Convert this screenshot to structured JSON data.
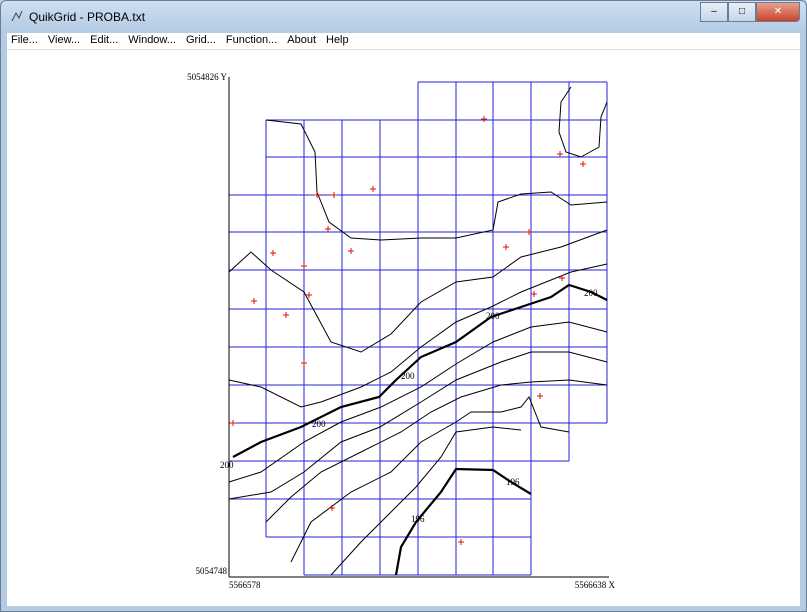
{
  "window": {
    "title": "QuikGrid - PROBA.txt"
  },
  "menu": [
    "File...",
    "View...",
    "Edit...",
    "Window...",
    "Grid...",
    "Function...",
    "About",
    "Help"
  ],
  "axes": {
    "y_top": "5054826 Y",
    "y_bottom": "5054748",
    "x_left": "5566578",
    "x_right": "5566638 X"
  },
  "contour_labels": [
    "200",
    "200",
    "200",
    "200",
    "200",
    "196",
    "196"
  ]
}
